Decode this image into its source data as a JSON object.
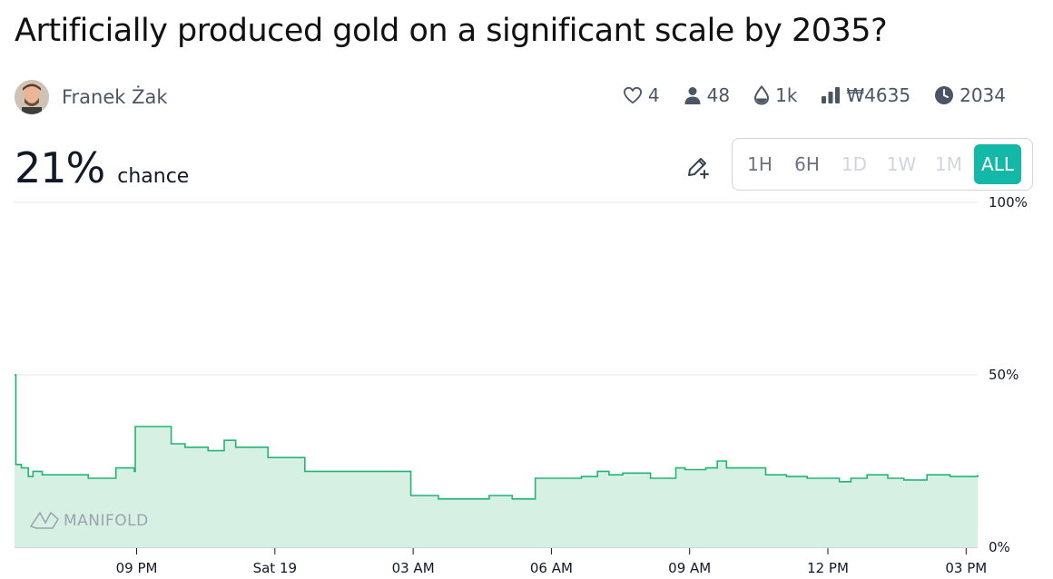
{
  "market": {
    "title": "Artificially produced gold on a significant scale by 2035?",
    "creator": "Franek Żak",
    "probability": "21%",
    "probability_label": "chance"
  },
  "stats": [
    {
      "icon": "heart-icon",
      "value": "4"
    },
    {
      "icon": "user-icon",
      "value": "48"
    },
    {
      "icon": "droplet-icon",
      "value": "1k"
    },
    {
      "icon": "bar-chart-icon",
      "value": "₩4635"
    },
    {
      "icon": "clock-icon",
      "value": "2034"
    }
  ],
  "time_ranges": [
    {
      "label": "1H",
      "state": "enabled"
    },
    {
      "label": "6H",
      "state": "enabled"
    },
    {
      "label": "1D",
      "state": "disabled"
    },
    {
      "label": "1W",
      "state": "disabled"
    },
    {
      "label": "1M",
      "state": "disabled"
    },
    {
      "label": "ALL",
      "state": "active"
    }
  ],
  "watermark": "MANIFOLD",
  "colors": {
    "accent": "#14b8a6",
    "line": "#22b573",
    "fill": "#d6f1e4"
  },
  "chart_data": {
    "type": "area",
    "step": true,
    "x_unit": "hours since start",
    "x_range": [
      0,
      20.9
    ],
    "ylim": [
      0,
      100
    ],
    "y_ticks": [
      {
        "value": 100,
        "label": "100%"
      },
      {
        "value": 50,
        "label": "50%"
      },
      {
        "value": 0,
        "label": "0%"
      }
    ],
    "x_ticks": [
      {
        "value": 2.65,
        "label": "09 PM"
      },
      {
        "value": 5.65,
        "label": "Sat 19"
      },
      {
        "value": 8.65,
        "label": "03 AM"
      },
      {
        "value": 11.65,
        "label": "06 AM"
      },
      {
        "value": 14.65,
        "label": "09 AM"
      },
      {
        "value": 17.65,
        "label": "12 PM"
      },
      {
        "value": 20.65,
        "label": "03 PM"
      }
    ],
    "series": [
      {
        "x": [
          0,
          0.03,
          0.15,
          0.3,
          0.4,
          0.6,
          1.6,
          2.2,
          2.6,
          2.62,
          3.4,
          3.7,
          4.2,
          4.55,
          4.8,
          5.5,
          6.3,
          8.6,
          9.2,
          10.3,
          10.8,
          11.3,
          12.3,
          12.65,
          12.9,
          13.2,
          13.8,
          14.35,
          14.55,
          15.0,
          15.25,
          15.45,
          16.3,
          16.75,
          17.2,
          17.9,
          18.15,
          18.5,
          18.95,
          19.3,
          19.8,
          20.3,
          20.9
        ],
        "y": [
          50,
          24,
          23,
          20.5,
          22,
          21,
          20,
          23,
          22,
          35,
          30,
          29,
          28,
          31,
          29,
          26,
          22,
          15,
          14,
          15,
          14,
          20,
          20.5,
          22,
          21,
          21.5,
          20,
          23,
          22.5,
          23,
          25,
          23,
          21,
          20.5,
          20,
          19,
          20,
          21,
          20,
          19.5,
          21,
          20.5,
          21
        ]
      }
    ]
  }
}
